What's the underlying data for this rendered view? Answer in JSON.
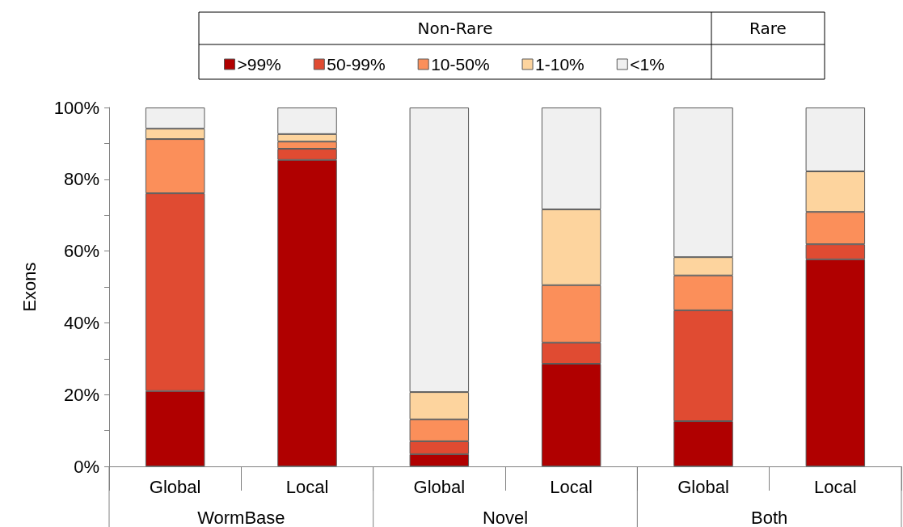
{
  "chart_data": {
    "type": "bar",
    "stacked": true,
    "ylabel": "Exons",
    "categories": [
      "Global",
      "Local",
      "Global",
      "Local",
      "Global",
      "Local"
    ],
    "annotations": [
      "Non-Rare",
      "Rare",
      "WormBase",
      "Novel",
      "Both"
    ],
    "series": [
      {
        "name": ">99%",
        "color": "#b00000",
        "values": [
          21,
          85.4,
          3.4,
          28.6,
          12.6,
          57.7
        ]
      },
      {
        "name": "50-99%",
        "color": "#e04b32",
        "values": [
          55.1,
          3.1,
          3.6,
          5.9,
          30.9,
          4.2
        ]
      },
      {
        "name": "10-50%",
        "color": "#fb8f5a",
        "values": [
          15.1,
          2,
          6.1,
          16,
          9.7,
          9
        ]
      },
      {
        "name": "1-10%",
        "color": "#fdd49e",
        "values": [
          2.9,
          2.1,
          7.6,
          21.1,
          5.1,
          11.3
        ]
      },
      {
        "name": "<1%",
        "color": "#f0f0f0",
        "values": [
          5.9,
          7.4,
          79.3,
          28.4,
          41.7,
          17.8
        ]
      }
    ],
    "ylim": [
      0,
      100
    ],
    "yticks": [
      {
        "value": 0,
        "label": "0%"
      },
      {
        "value": 10,
        "label": null
      },
      {
        "value": 20,
        "label": "20%"
      },
      {
        "value": 30,
        "label": null
      },
      {
        "value": 40,
        "label": "40%"
      },
      {
        "value": 50,
        "label": null
      },
      {
        "value": 60,
        "label": "60%"
      },
      {
        "value": 70,
        "label": null
      },
      {
        "value": 80,
        "label": "80%"
      },
      {
        "value": 90,
        "label": null
      },
      {
        "value": 100,
        "label": "100%"
      }
    ],
    "grid": false,
    "legend": "top"
  }
}
